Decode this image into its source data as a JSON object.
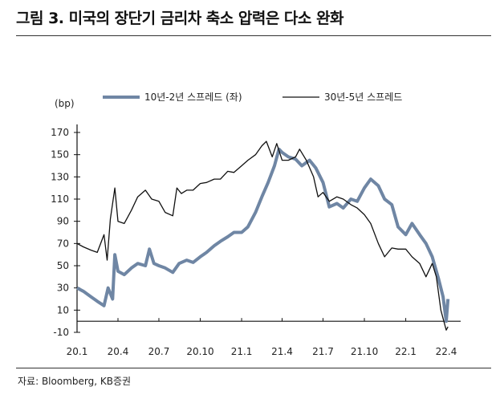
{
  "title": "그림 3. 미국의 장단기 금리차 축소 압력은 다소 완화",
  "source": "자료: Bloomberg, KB증권",
  "chart_data": {
    "type": "line",
    "title": "",
    "ylabel": "(bp)",
    "ylim": [
      -10,
      170
    ],
    "yticks": [
      170,
      150,
      130,
      110,
      90,
      70,
      50,
      30,
      10,
      -10
    ],
    "xlim": [
      "2020-01-01",
      "2022-04-20"
    ],
    "xticks": [
      {
        "date": "2020-01-01",
        "label": "20.1"
      },
      {
        "date": "2020-04-01",
        "label": "20.4"
      },
      {
        "date": "2020-07-01",
        "label": "20.7"
      },
      {
        "date": "2020-10-01",
        "label": "20.10"
      },
      {
        "date": "2021-01-01",
        "label": "21.1"
      },
      {
        "date": "2021-04-01",
        "label": "21.4"
      },
      {
        "date": "2021-07-01",
        "label": "21.7"
      },
      {
        "date": "2021-10-01",
        "label": "21.10"
      },
      {
        "date": "2022-01-01",
        "label": "22.1"
      },
      {
        "date": "2022-04-01",
        "label": "22.4"
      }
    ],
    "legend_placement": "top",
    "grid": false,
    "series": [
      {
        "name": "10년-2년 스프레드 (좌)",
        "color": "#6f86a4",
        "x": [
          "2020-01-01",
          "2020-01-15",
          "2020-02-01",
          "2020-02-15",
          "2020-03-01",
          "2020-03-10",
          "2020-03-20",
          "2020-03-25",
          "2020-04-01",
          "2020-04-15",
          "2020-05-01",
          "2020-05-15",
          "2020-06-01",
          "2020-06-10",
          "2020-06-20",
          "2020-07-01",
          "2020-07-15",
          "2020-08-01",
          "2020-08-15",
          "2020-09-01",
          "2020-09-15",
          "2020-10-01",
          "2020-10-15",
          "2020-11-01",
          "2020-11-15",
          "2020-12-01",
          "2020-12-15",
          "2021-01-01",
          "2021-01-15",
          "2021-02-01",
          "2021-02-15",
          "2021-03-01",
          "2021-03-15",
          "2021-03-25",
          "2021-04-01",
          "2021-04-15",
          "2021-05-01",
          "2021-05-15",
          "2021-06-01",
          "2021-06-15",
          "2021-07-01",
          "2021-07-15",
          "2021-08-01",
          "2021-08-15",
          "2021-09-01",
          "2021-09-15",
          "2021-10-01",
          "2021-10-15",
          "2021-11-01",
          "2021-11-15",
          "2021-12-01",
          "2021-12-15",
          "2022-01-01",
          "2022-01-15",
          "2022-02-01",
          "2022-02-15",
          "2022-03-01",
          "2022-03-15",
          "2022-03-25",
          "2022-04-01",
          "2022-04-05"
        ],
        "y": [
          30,
          27,
          22,
          18,
          14,
          30,
          20,
          60,
          45,
          42,
          48,
          52,
          50,
          65,
          52,
          50,
          48,
          44,
          52,
          55,
          53,
          58,
          62,
          68,
          72,
          76,
          80,
          80,
          85,
          98,
          112,
          125,
          140,
          155,
          152,
          148,
          146,
          140,
          145,
          138,
          125,
          103,
          106,
          102,
          110,
          108,
          120,
          128,
          122,
          110,
          105,
          85,
          78,
          88,
          78,
          70,
          58,
          38,
          22,
          0,
          20
        ]
      },
      {
        "name": "30년-5년 스프레드",
        "color": "#111111",
        "x": [
          "2020-01-01",
          "2020-01-15",
          "2020-02-01",
          "2020-02-15",
          "2020-03-01",
          "2020-03-08",
          "2020-03-15",
          "2020-03-25",
          "2020-04-01",
          "2020-04-15",
          "2020-05-01",
          "2020-05-15",
          "2020-06-01",
          "2020-06-15",
          "2020-07-01",
          "2020-07-15",
          "2020-08-01",
          "2020-08-10",
          "2020-08-20",
          "2020-09-01",
          "2020-09-15",
          "2020-10-01",
          "2020-10-15",
          "2020-11-01",
          "2020-11-15",
          "2020-12-01",
          "2020-12-15",
          "2021-01-01",
          "2021-01-15",
          "2021-02-01",
          "2021-02-15",
          "2021-02-25",
          "2021-03-10",
          "2021-03-20",
          "2021-04-01",
          "2021-04-15",
          "2021-05-01",
          "2021-05-10",
          "2021-05-25",
          "2021-06-10",
          "2021-06-20",
          "2021-07-01",
          "2021-07-15",
          "2021-08-01",
          "2021-08-15",
          "2021-09-01",
          "2021-09-15",
          "2021-10-01",
          "2021-10-15",
          "2021-11-01",
          "2021-11-15",
          "2021-12-01",
          "2021-12-15",
          "2022-01-01",
          "2022-01-15",
          "2022-02-01",
          "2022-02-15",
          "2022-03-01",
          "2022-03-10",
          "2022-03-20",
          "2022-04-01",
          "2022-04-05"
        ],
        "y": [
          70,
          67,
          64,
          62,
          78,
          55,
          92,
          120,
          90,
          88,
          100,
          112,
          118,
          110,
          108,
          98,
          95,
          120,
          115,
          118,
          118,
          124,
          125,
          128,
          128,
          135,
          134,
          140,
          145,
          150,
          158,
          162,
          148,
          160,
          145,
          145,
          148,
          155,
          145,
          130,
          112,
          116,
          108,
          112,
          110,
          105,
          102,
          96,
          88,
          70,
          58,
          66,
          65,
          65,
          58,
          52,
          40,
          52,
          40,
          10,
          -8,
          -5
        ]
      }
    ]
  }
}
